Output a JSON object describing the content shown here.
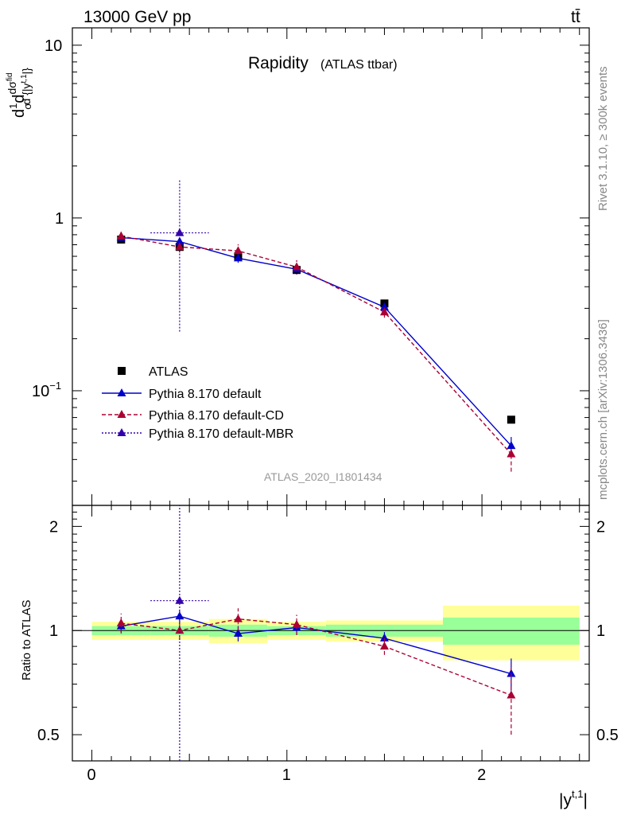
{
  "header": {
    "energy_label": "13000 GeV pp",
    "process_label": "tt̄"
  },
  "side_text": {
    "rivet": "Rivet 3.1.10, ≥ 300k events",
    "mcplots": "mcplots.cern.ch [arXiv:1306.3436]"
  },
  "watermark": "ATLAS_2020_I1801434",
  "colors": {
    "atlas": "#000000",
    "default": "#0000cc",
    "cd": "#aa0033",
    "mbr": "#3300aa",
    "band_green": "#99ff99",
    "band_yellow": "#ffff99"
  },
  "chart_data": {
    "type": "line",
    "title": "Rapidity",
    "title_suffix": "(ATLAS ttbar)",
    "xlabel": "|y^{t,1}|",
    "ylabel": "1/σ dσ^{fid}/d{|y^{t,1}|}",
    "ratio_ylabel": "Ratio to ATLAS",
    "xlim": [
      -0.1,
      2.55
    ],
    "ylim_main": [
      0.0217,
      12.6
    ],
    "ylim_ratio": [
      0.42,
      2.3
    ],
    "yscale": "log",
    "x_ticks": [
      "0",
      "1",
      "2"
    ],
    "x_tick_values": [
      0,
      1,
      2
    ],
    "y_ticks_main": [
      "10^{-1}",
      "1",
      "10"
    ],
    "y_tick_values_main": [
      0.1,
      1,
      10
    ],
    "y_ticks_ratio": [
      "0.5",
      "1",
      "2"
    ],
    "y_tick_values_ratio": [
      0.5,
      1,
      2
    ],
    "bins": [
      [
        0,
        0.3
      ],
      [
        0.3,
        0.6
      ],
      [
        0.6,
        0.9
      ],
      [
        0.9,
        1.2
      ],
      [
        1.2,
        1.8
      ],
      [
        1.8,
        2.5
      ]
    ],
    "series": [
      {
        "name": "ATLAS",
        "key": "atlas",
        "x": [
          0.15,
          0.45,
          0.75,
          1.05,
          1.5,
          2.15
        ],
        "values": [
          0.75,
          0.68,
          0.6,
          0.5,
          0.32,
          0.068
        ],
        "rel_err_inner": [
          0.03,
          0.03,
          0.04,
          0.03,
          0.04,
          0.09
        ],
        "rel_err_outer": [
          0.06,
          0.06,
          0.08,
          0.06,
          0.07,
          0.18
        ]
      },
      {
        "name": "Pythia 8.170 default",
        "key": "default",
        "x": [
          0.15,
          0.45,
          0.75,
          1.05,
          1.5,
          2.15
        ],
        "values": [
          0.77,
          0.73,
          0.585,
          0.505,
          0.305,
          0.048
        ],
        "err": [
          0.04,
          0.04,
          0.035,
          0.03,
          0.015,
          0.006
        ],
        "ratio": [
          1.03,
          1.1,
          0.98,
          1.02,
          0.95,
          0.75
        ],
        "ratio_err": [
          0.04,
          0.05,
          0.05,
          0.05,
          0.04,
          0.08
        ]
      },
      {
        "name": "Pythia 8.170 default-CD",
        "key": "cd",
        "x": [
          0.15,
          0.45,
          0.75,
          1.05,
          1.5,
          2.15
        ],
        "values": [
          0.785,
          0.68,
          0.645,
          0.52,
          0.285,
          0.043
        ],
        "err": [
          0.06,
          0.05,
          0.06,
          0.05,
          0.02,
          0.009
        ],
        "ratio": [
          1.05,
          1.0,
          1.08,
          1.04,
          0.9,
          0.65
        ],
        "ratio_err": [
          0.07,
          0.06,
          0.08,
          0.07,
          0.05,
          0.15
        ]
      },
      {
        "name": "Pythia 8.170 default-MBR",
        "key": "mbr",
        "x": [
          0.45
        ],
        "values": [
          0.82
        ],
        "err_low": [
          0.6
        ],
        "err_high": [
          0.85
        ],
        "x_err": [
          0.15
        ],
        "ratio": [
          1.22
        ],
        "ratio_err_low": [
          0.8
        ],
        "ratio_err_high": [
          1.2
        ]
      }
    ],
    "legend": [
      "ATLAS",
      "Pythia 8.170 default",
      "Pythia 8.170 default-CD",
      "Pythia 8.170 default-MBR"
    ],
    "legend_position": "bottom-left"
  }
}
